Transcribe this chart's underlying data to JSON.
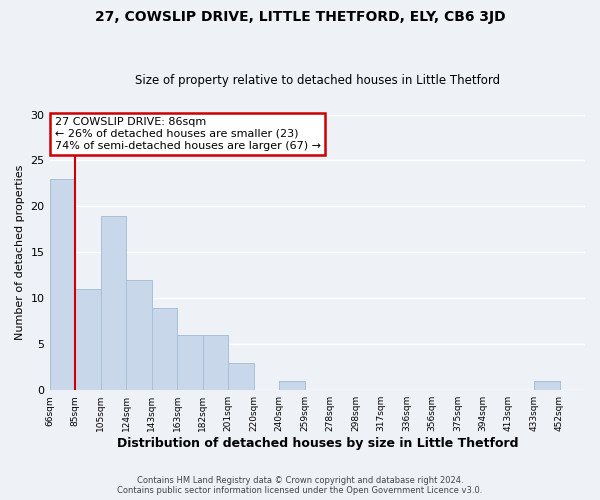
{
  "title": "27, COWSLIP DRIVE, LITTLE THETFORD, ELY, CB6 3JD",
  "subtitle": "Size of property relative to detached houses in Little Thetford",
  "xlabel": "Distribution of detached houses by size in Little Thetford",
  "ylabel": "Number of detached properties",
  "bar_color": "#c8d8ea",
  "bar_edge_color": "#a8c0d8",
  "background_color": "#eef2f7",
  "grid_color": "#ffffff",
  "bins": [
    "66sqm",
    "85sqm",
    "105sqm",
    "124sqm",
    "143sqm",
    "163sqm",
    "182sqm",
    "201sqm",
    "220sqm",
    "240sqm",
    "259sqm",
    "278sqm",
    "298sqm",
    "317sqm",
    "336sqm",
    "356sqm",
    "375sqm",
    "394sqm",
    "413sqm",
    "433sqm",
    "452sqm"
  ],
  "values": [
    23,
    11,
    19,
    12,
    9,
    6,
    6,
    3,
    0,
    1,
    0,
    0,
    0,
    0,
    0,
    0,
    0,
    0,
    0,
    1,
    0
  ],
  "ylim": [
    0,
    30
  ],
  "property_line_x": 1,
  "property_line_color": "#cc0000",
  "annotation_title": "27 COWSLIP DRIVE: 86sqm",
  "annotation_line1": "← 26% of detached houses are smaller (23)",
  "annotation_line2": "74% of semi-detached houses are larger (67) →",
  "annotation_box_color": "#ffffff",
  "annotation_box_edge": "#cc0000",
  "footer1": "Contains HM Land Registry data © Crown copyright and database right 2024.",
  "footer2": "Contains public sector information licensed under the Open Government Licence v3.0."
}
